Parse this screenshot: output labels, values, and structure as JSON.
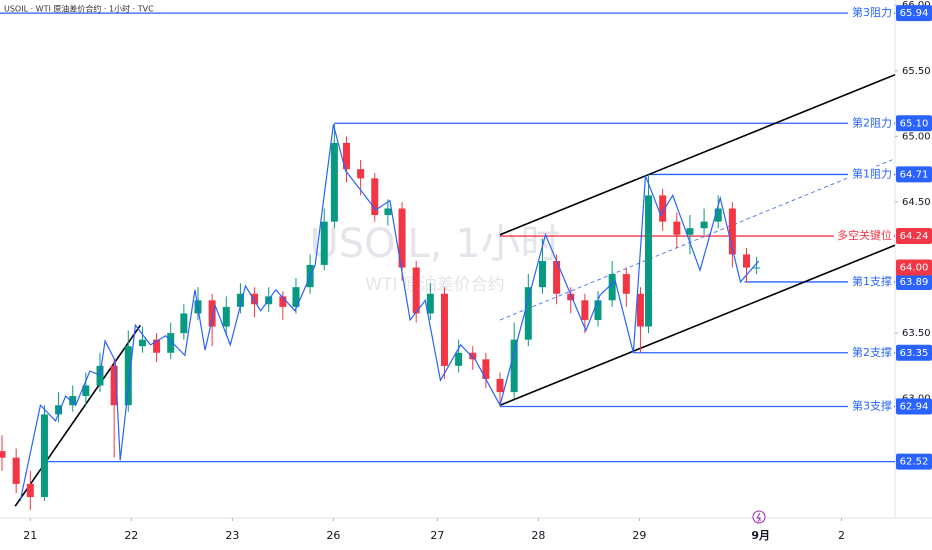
{
  "chart_data": {
    "type": "candlestick",
    "header": "USOIL · WTI 原油差价合约 · 1小时 · TVC",
    "watermark": "USOIL, 1小时",
    "watermark_sub": "WTI 原油差价合约",
    "up_color": "#089981",
    "down_color": "#f23645",
    "xlim": [
      -0.3,
      8.56
    ],
    "ylim": [
      62.09,
      66.04
    ],
    "xticks": [
      {
        "value": 0,
        "label": "21"
      },
      {
        "value": 1,
        "label": "22"
      },
      {
        "value": 2,
        "label": "23"
      },
      {
        "value": 3,
        "label": "26"
      },
      {
        "value": 4.03,
        "label": "27"
      },
      {
        "value": 5.03,
        "label": "28"
      },
      {
        "value": 6.03,
        "label": "29"
      },
      {
        "value": 7.23,
        "label": "9月"
      },
      {
        "value": 8.03,
        "label": "2"
      }
    ],
    "yticks": [
      {
        "value": 63,
        "label": "63.00"
      },
      {
        "value": 63.5,
        "label": "63.50"
      },
      {
        "value": 64.5,
        "label": "64.50"
      },
      {
        "value": 65,
        "label": "65.00"
      },
      {
        "value": 65.5,
        "label": "65.50"
      },
      {
        "value": 66,
        "label": "66.00"
      }
    ],
    "candles": {
      "x": [
        -0.28,
        -0.14,
        0,
        0.14,
        0.28,
        0.42,
        0.55,
        0.69,
        0.83,
        0.97,
        1.11,
        1.25,
        1.39,
        1.52,
        1.66,
        1.8,
        1.94,
        2.08,
        2.22,
        2.36,
        2.5,
        2.63,
        2.77,
        2.91,
        3.01,
        3.13,
        3.27,
        3.41,
        3.54,
        3.68,
        3.82,
        3.96,
        4.1,
        4.24,
        4.38,
        4.51,
        4.65,
        4.79,
        4.93,
        5.07,
        5.21,
        5.35,
        5.49,
        5.62,
        5.76,
        5.9,
        6.04,
        6.12,
        6.26,
        6.4,
        6.53,
        6.67,
        6.81,
        6.95,
        7.09,
        7.19
      ],
      "open": [
        62.6,
        62.55,
        62.35,
        62.25,
        62.88,
        62.95,
        63.02,
        63.1,
        63.25,
        62.95,
        63.4,
        63.45,
        63.35,
        63.5,
        63.65,
        63.75,
        63.55,
        63.7,
        63.8,
        63.72,
        63.78,
        63.7,
        63.85,
        64.02,
        64.35,
        64.95,
        64.75,
        64.68,
        64.4,
        64.45,
        64,
        63.65,
        63.8,
        63.25,
        63.35,
        63.3,
        63.15,
        63.05,
        63.45,
        63.85,
        64.05,
        63.8,
        63.75,
        63.6,
        63.75,
        63.95,
        63.8,
        63.55,
        64.55,
        64.35,
        64.25,
        64.3,
        64.35,
        64.45,
        64.1,
        64
      ],
      "high": [
        62.72,
        62.62,
        62.45,
        62.95,
        63.05,
        63.1,
        63.2,
        63.35,
        63.3,
        63.52,
        63.55,
        63.5,
        63.58,
        63.72,
        63.85,
        63.8,
        63.78,
        63.88,
        63.85,
        63.85,
        63.82,
        63.92,
        64.1,
        64.45,
        65.1,
        65,
        64.82,
        64.72,
        64.52,
        64.5,
        64.05,
        63.88,
        63.85,
        63.45,
        63.4,
        63.35,
        63.2,
        63.58,
        63.95,
        64.22,
        64.1,
        63.85,
        63.8,
        63.82,
        64.05,
        64,
        63.85,
        64.71,
        64.6,
        64.42,
        64.4,
        64.45,
        64.55,
        64.5,
        64.15,
        64.08
      ],
      "low": [
        62.45,
        62.28,
        62.15,
        62.22,
        62.82,
        62.9,
        62.95,
        63.05,
        62.55,
        62.9,
        63.35,
        63.28,
        63.3,
        63.45,
        63.6,
        63.4,
        63.48,
        63.65,
        63.62,
        63.66,
        63.6,
        63.65,
        63.8,
        63.98,
        64.3,
        64.65,
        64.55,
        64.35,
        64.32,
        63.9,
        63.58,
        63.6,
        63.15,
        63.2,
        63.22,
        63.08,
        62.94,
        63,
        63.4,
        63.8,
        63.72,
        63.65,
        63.5,
        63.55,
        63.7,
        63.7,
        63.35,
        63.5,
        64.28,
        64.15,
        64.1,
        64.25,
        64.3,
        64,
        63.89,
        63.95
      ],
      "close": [
        62.55,
        62.35,
        62.25,
        62.88,
        62.95,
        63.02,
        63.1,
        63.25,
        62.95,
        63.4,
        63.45,
        63.35,
        63.5,
        63.65,
        63.75,
        63.55,
        63.7,
        63.8,
        63.72,
        63.78,
        63.7,
        63.85,
        64.02,
        64.35,
        64.95,
        64.75,
        64.68,
        64.4,
        64.45,
        64,
        63.65,
        63.8,
        63.25,
        63.35,
        63.3,
        63.15,
        63.05,
        63.45,
        63.85,
        64.05,
        63.8,
        63.75,
        63.6,
        63.75,
        63.95,
        63.8,
        63.55,
        64.55,
        64.35,
        64.25,
        64.3,
        64.35,
        64.45,
        64.1,
        64,
        64
      ]
    },
    "zigzag": {
      "color": "#2962ff",
      "x": [
        -0.1,
        0.1,
        0.25,
        0.35,
        0.45,
        0.59,
        0.69,
        0.74,
        0.84,
        0.89,
        1.04,
        1.19,
        1.34,
        1.53,
        1.63,
        1.73,
        1.83,
        1.98,
        2.13,
        2.28,
        2.43,
        2.62,
        2.82,
        3,
        3.12,
        3.42,
        3.56,
        3.76,
        3.91,
        4.06,
        4.26,
        4.41,
        4.65,
        5.1,
        5.5,
        5.64,
        5.79,
        5.97,
        6.09,
        6.24,
        6.36,
        6.63,
        6.83,
        7.03,
        7.21
      ],
      "y": [
        62.22,
        62.95,
        62.83,
        63.02,
        62.95,
        63.21,
        63.18,
        63.44,
        63.29,
        62.53,
        63.56,
        63.41,
        63.48,
        63.33,
        63.83,
        63.37,
        63.71,
        63.41,
        63.86,
        63.67,
        63.83,
        63.67,
        64.02,
        65.09,
        64.74,
        64.44,
        64.51,
        63.6,
        63.75,
        63.14,
        63.41,
        63.29,
        62.95,
        64.25,
        63.52,
        63.79,
        63.9,
        63.35,
        64.7,
        64.4,
        64.55,
        63.98,
        64.53,
        63.89,
        64.05
      ]
    },
    "trend_lines": [
      {
        "color": "#000000",
        "dashed": false,
        "x": [
          -0.15,
          1.09
        ],
        "y": [
          62.18,
          63.56
        ]
      },
      {
        "color": "#000000",
        "dashed": false,
        "x": [
          4.65,
          8.56
        ],
        "y": [
          64.25,
          65.47
        ]
      },
      {
        "color": "#000000",
        "dashed": false,
        "x": [
          4.65,
          8.56
        ],
        "y": [
          62.95,
          64.17
        ]
      },
      {
        "color": "#5b7ff5",
        "dashed": true,
        "x": [
          4.65,
          8.56
        ],
        "y": [
          63.6,
          64.83
        ]
      }
    ],
    "levels": [
      {
        "name": "第3阻力",
        "value": 65.94,
        "label": "65.94",
        "x_start": -0.3,
        "color": "#2962ff"
      },
      {
        "name": "第2阻力",
        "value": 65.1,
        "label": "65.10",
        "x_start": 3.01,
        "color": "#2962ff"
      },
      {
        "name": "第1阻力",
        "value": 64.71,
        "label": "64.71",
        "x_start": 6.12,
        "color": "#2962ff"
      },
      {
        "name": "多空关键位",
        "value": 64.24,
        "label": "64.24",
        "x_start": 4.65,
        "color": "#f23645"
      },
      {
        "name": "第1支撑",
        "value": 63.89,
        "label": "63.89",
        "x_start": 7.07,
        "color": "#2962ff"
      },
      {
        "name": "第2支撑",
        "value": 63.35,
        "label": "63.35",
        "x_start": 5.97,
        "color": "#2962ff"
      },
      {
        "name": "第3支撑",
        "value": 62.94,
        "label": "62.94",
        "x_start": 4.65,
        "color": "#2962ff"
      },
      {
        "value": 62.52,
        "label": "62.52",
        "x_start": 0.17,
        "color": "#2962ff"
      }
    ],
    "last_price": {
      "value": 64,
      "label": "64.00",
      "color": "#f23645"
    }
  }
}
